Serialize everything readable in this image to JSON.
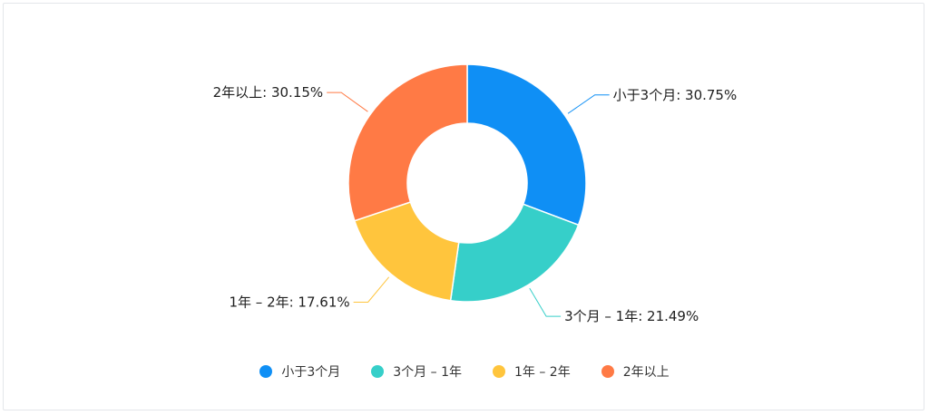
{
  "chart_data": {
    "type": "pie",
    "donut": true,
    "legend_position": "bottom",
    "series": [
      {
        "name": "小于3个月",
        "value": 30.75,
        "label": "小于3个月: 30.75%",
        "color": "#0f8ff5"
      },
      {
        "name": "3个月 – 1年",
        "value": 21.49,
        "label": "3个月 – 1年: 21.49%",
        "color": "#36cfc9"
      },
      {
        "name": "1年 – 2年",
        "value": 17.61,
        "label": "1年 – 2年: 17.61%",
        "color": "#ffc53d"
      },
      {
        "name": "2年以上",
        "value": 30.15,
        "label": "2年以上: 30.15%",
        "color": "#ff7a45"
      }
    ]
  }
}
